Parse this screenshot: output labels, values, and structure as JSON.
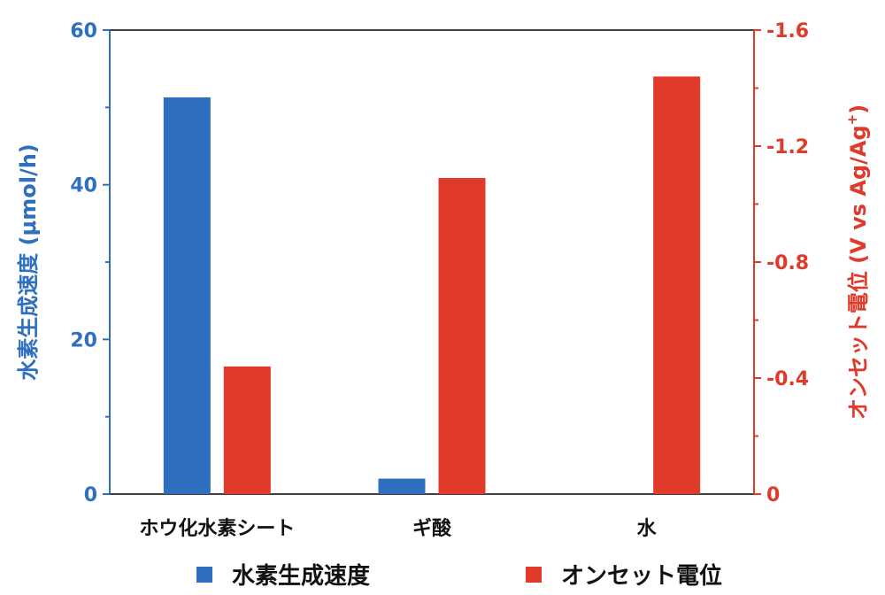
{
  "chart_data": {
    "type": "bar",
    "categories": [
      "ホウ化水素シート",
      "ギ酸",
      "水"
    ],
    "series": [
      {
        "name": "水素生成速度",
        "axis": "left",
        "color": "#2f6fbf",
        "values": [
          51.3,
          2.0,
          0
        ]
      },
      {
        "name": "オンセット電位",
        "axis": "right",
        "color": "#e03a2a",
        "values": [
          -0.44,
          -1.09,
          -1.44
        ]
      }
    ],
    "left_axis": {
      "label": "水素生成速度 (μmol/h)",
      "ylim": [
        0,
        60
      ],
      "ticks": [
        0,
        20,
        40,
        60
      ],
      "tick_labels": [
        "0",
        "20",
        "40",
        "60"
      ],
      "color": "#2f6fbf"
    },
    "right_axis": {
      "label": "オンセット電位 (V vs Ag/Ag",
      "label_sup": "+",
      "label_end": ")",
      "ylim": [
        0,
        -1.6
      ],
      "ticks": [
        0,
        -0.4,
        -0.8,
        -1.2,
        -1.6
      ],
      "tick_labels": [
        "0",
        "-0.4",
        "-0.8",
        "-1.2",
        "-1.6"
      ],
      "color": "#e03a2a"
    },
    "legend": {
      "placement": "bottom",
      "entries": [
        "水素生成速度",
        "オンセット電位"
      ]
    },
    "grid": false
  }
}
